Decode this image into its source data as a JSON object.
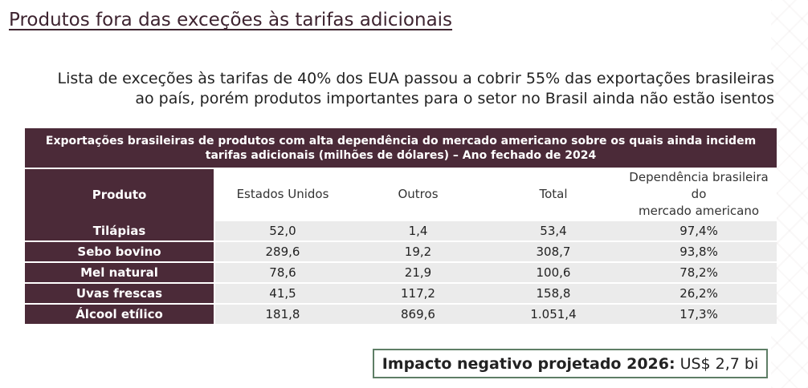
{
  "page": {
    "title": "Produtos fora das exceções às tarifas adicionais",
    "subtitle_line1": "Lista de exceções às tarifas de 40% dos EUA passou a cobrir 55% das exportações brasileiras",
    "subtitle_line2": "ao país, porém produtos importantes para o setor no Brasil ainda não estão isentos"
  },
  "table": {
    "caption_line1": "Exportações brasileiras de produtos com alta dependência do mercado americano sobre os quais ainda incidem",
    "caption_line2": "tarifas adicionais (milhões de dólares) – Ano fechado de 2024",
    "headers": {
      "produto": "Produto",
      "eua": "Estados Unidos",
      "outros": "Outros",
      "total": "Total",
      "dependencia_line1": "Dependência brasileira do",
      "dependencia_line2": "mercado americano"
    },
    "rows": [
      {
        "produto": "Tilápias",
        "eua": "52,0",
        "outros": "1,4",
        "total": "53,4",
        "dep": "97,4%"
      },
      {
        "produto": "Sebo bovino",
        "eua": "289,6",
        "outros": "19,2",
        "total": "308,7",
        "dep": "93,8%"
      },
      {
        "produto": "Mel natural",
        "eua": "78,6",
        "outros": "21,9",
        "total": "100,6",
        "dep": "78,2%"
      },
      {
        "produto": "Uvas frescas",
        "eua": "41,5",
        "outros": "117,2",
        "total": "158,8",
        "dep": "26,2%"
      },
      {
        "produto": "Álcool etílico",
        "eua": "181,8",
        "outros": "869,6",
        "total": "1.051,4",
        "dep": "17,3%"
      }
    ]
  },
  "impact": {
    "label": "Impacto negativo projetado 2026:",
    "value": "US$ 2,7 bi"
  },
  "colors": {
    "header_bg": "#4b2a38",
    "cell_bg": "#ebebeb",
    "impact_border": "#5e7e66"
  }
}
